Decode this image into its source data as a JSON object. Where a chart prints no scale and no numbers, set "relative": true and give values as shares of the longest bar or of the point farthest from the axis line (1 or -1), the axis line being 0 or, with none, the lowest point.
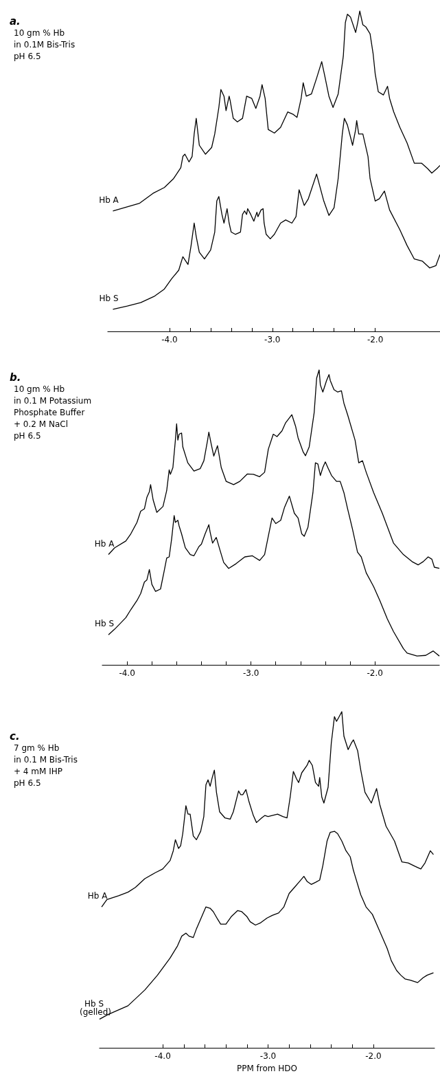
{
  "chart_data": [
    {
      "type": "line",
      "annotations": [
        "a."
      ],
      "subtitle": "10 gm % Hb\nin 0.1M Bis-Tris\npH 6.5",
      "relative": true,
      "xlim": [
        -4.6,
        -1.37
      ],
      "xticks": [
        {
          "value": -4,
          "label": "-4.0"
        },
        {
          "value": -3.8,
          "label": null
        },
        {
          "value": -3.6,
          "label": null
        },
        {
          "value": -3.4,
          "label": null
        },
        {
          "value": -3.2,
          "label": null
        },
        {
          "value": -3,
          "label": "-3.0"
        },
        {
          "value": -2.8,
          "label": null
        },
        {
          "value": -2.6,
          "label": null
        },
        {
          "value": -2.4,
          "label": null
        },
        {
          "value": -2.2,
          "label": null
        },
        {
          "value": -2,
          "label": "-2.0"
        }
      ],
      "series": [
        {
          "name": "Hb A",
          "color": "#000000",
          "x": [
            -4.55,
            -4.4,
            -4.29,
            -4.16,
            -4.05,
            -3.96,
            -3.89,
            -3.87,
            -3.85,
            -3.81,
            -3.78,
            -3.76,
            -3.74,
            -3.71,
            -3.65,
            -3.59,
            -3.56,
            -3.52,
            -3.5,
            -3.47,
            -3.45,
            -3.42,
            -3.41,
            -3.38,
            -3.34,
            -3.29,
            -3.25,
            -3.2,
            -3.16,
            -3.12,
            -3.1,
            -3.07,
            -3.04,
            -2.98,
            -2.92,
            -2.85,
            -2.8,
            -2.76,
            -2.72,
            -2.7,
            -2.67,
            -2.62,
            -2.57,
            -2.52,
            -2.49,
            -2.45,
            -2.41,
            -2.36,
            -2.31,
            -2.29,
            -2.27,
            -2.24,
            -2.19,
            -2.17,
            -2.15,
            -2.12,
            -2.09,
            -2.05,
            -2.02,
            -2.0,
            -1.97,
            -1.92,
            -1.88,
            -1.86,
            -1.82,
            -1.76,
            -1.69,
            -1.62,
            -1.55,
            -1.49,
            -1.45,
            -1.4,
            -1.37
          ],
          "values": [
            0.376,
            0.39,
            0.4,
            0.431,
            0.449,
            0.477,
            0.511,
            0.546,
            0.553,
            0.529,
            0.546,
            0.616,
            0.665,
            0.581,
            0.553,
            0.574,
            0.616,
            0.699,
            0.755,
            0.734,
            0.689,
            0.734,
            0.72,
            0.665,
            0.654,
            0.665,
            0.734,
            0.727,
            0.696,
            0.734,
            0.77,
            0.727,
            0.63,
            0.619,
            0.637,
            0.685,
            0.678,
            0.668,
            0.727,
            0.776,
            0.734,
            0.741,
            0.79,
            0.842,
            0.797,
            0.734,
            0.699,
            0.741,
            0.859,
            0.964,
            0.99,
            0.981,
            0.933,
            0.964,
            1.0,
            0.957,
            0.95,
            0.929,
            0.866,
            0.804,
            0.748,
            0.738,
            0.765,
            0.727,
            0.685,
            0.637,
            0.588,
            0.525,
            0.525,
            0.508,
            0.494,
            0.508,
            0.518
          ]
        },
        {
          "name": "Hb S",
          "color": "#000000",
          "x": [
            -4.55,
            -4.41,
            -4.28,
            -4.15,
            -4.05,
            -3.98,
            -3.91,
            -3.87,
            -3.82,
            -3.79,
            -3.76,
            -3.74,
            -3.71,
            -3.66,
            -3.6,
            -3.56,
            -3.54,
            -3.52,
            -3.49,
            -3.47,
            -3.44,
            -3.42,
            -3.4,
            -3.36,
            -3.31,
            -3.29,
            -3.27,
            -3.25,
            -3.24,
            -3.21,
            -3.18,
            -3.15,
            -3.14,
            -3.11,
            -3.09,
            -3.08,
            -3.06,
            -3.02,
            -2.98,
            -2.92,
            -2.87,
            -2.81,
            -2.77,
            -2.74,
            -2.69,
            -2.65,
            -2.57,
            -2.5,
            -2.45,
            -2.4,
            -2.36,
            -2.32,
            -2.3,
            -2.27,
            -2.22,
            -2.19,
            -2.18,
            -2.16,
            -2.12,
            -2.07,
            -2.05,
            -2.0,
            -1.96,
            -1.91,
            -1.86,
            -1.76,
            -1.69,
            -1.62,
            -1.54,
            -1.47,
            -1.41,
            -1.37
          ],
          "values": [
            0.069,
            0.079,
            0.09,
            0.109,
            0.132,
            0.164,
            0.191,
            0.233,
            0.209,
            0.268,
            0.338,
            0.296,
            0.247,
            0.226,
            0.254,
            0.31,
            0.407,
            0.421,
            0.365,
            0.338,
            0.383,
            0.338,
            0.31,
            0.303,
            0.31,
            0.365,
            0.376,
            0.365,
            0.383,
            0.365,
            0.344,
            0.372,
            0.358,
            0.379,
            0.383,
            0.338,
            0.303,
            0.289,
            0.303,
            0.338,
            0.348,
            0.338,
            0.358,
            0.442,
            0.393,
            0.414,
            0.491,
            0.407,
            0.362,
            0.386,
            0.477,
            0.616,
            0.665,
            0.644,
            0.581,
            0.63,
            0.658,
            0.616,
            0.616,
            0.546,
            0.477,
            0.407,
            0.414,
            0.438,
            0.379,
            0.317,
            0.268,
            0.226,
            0.219,
            0.198,
            0.205,
            0.24
          ]
        }
      ]
    },
    {
      "type": "line",
      "annotations": [
        "b."
      ],
      "subtitle": "10 gm % Hb\nin 0.1 M Potassium\nPhosphate Buffer\n+ 0.2 M NaCl\npH 6.5",
      "relative": true,
      "xlim": [
        -4.2,
        -1.48
      ],
      "xticks": [
        {
          "value": -4,
          "label": "-4.0"
        },
        {
          "value": -3.8,
          "label": null
        },
        {
          "value": -3.6,
          "label": null
        },
        {
          "value": -3.4,
          "label": null
        },
        {
          "value": -3.2,
          "label": null
        },
        {
          "value": -3,
          "label": "-3.0"
        },
        {
          "value": -2.8,
          "label": null
        },
        {
          "value": -2.6,
          "label": null
        },
        {
          "value": -2.4,
          "label": null
        },
        {
          "value": -2.2,
          "label": null
        },
        {
          "value": -2,
          "label": "-2.0"
        }
      ],
      "series": [
        {
          "name": "Hb A",
          "color": "#000000",
          "x": [
            -4.15,
            -4.1,
            -4.01,
            -3.97,
            -3.92,
            -3.89,
            -3.86,
            -3.84,
            -3.82,
            -3.81,
            -3.79,
            -3.76,
            -3.71,
            -3.68,
            -3.66,
            -3.65,
            -3.63,
            -3.61,
            -3.6,
            -3.59,
            -3.58,
            -3.56,
            -3.55,
            -3.51,
            -3.46,
            -3.41,
            -3.38,
            -3.35,
            -3.34,
            -3.32,
            -3.3,
            -3.27,
            -3.24,
            -3.2,
            -3.14,
            -3.09,
            -3.03,
            -2.98,
            -2.93,
            -2.89,
            -2.86,
            -2.82,
            -2.79,
            -2.75,
            -2.72,
            -2.67,
            -2.64,
            -2.62,
            -2.58,
            -2.56,
            -2.53,
            -2.49,
            -2.47,
            -2.45,
            -2.44,
            -2.42,
            -2.39,
            -2.37,
            -2.36,
            -2.33,
            -2.3,
            -2.27,
            -2.25,
            -2.22,
            -2.16,
            -2.13,
            -2.1,
            -2.07,
            -2.01,
            -1.94,
            -1.85,
            -1.77,
            -1.7,
            -1.65,
            -1.61,
            -1.57,
            -1.54,
            -1.52,
            -1.48
          ],
          "values": [
            0.374,
            0.397,
            0.42,
            0.444,
            0.483,
            0.521,
            0.529,
            0.568,
            0.587,
            0.611,
            0.56,
            0.517,
            0.537,
            0.591,
            0.661,
            0.646,
            0.669,
            0.762,
            0.817,
            0.762,
            0.782,
            0.786,
            0.739,
            0.685,
            0.657,
            0.665,
            0.692,
            0.762,
            0.789,
            0.747,
            0.708,
            0.743,
            0.669,
            0.622,
            0.611,
            0.622,
            0.647,
            0.646,
            0.638,
            0.653,
            0.731,
            0.782,
            0.774,
            0.793,
            0.821,
            0.848,
            0.809,
            0.77,
            0.723,
            0.709,
            0.739,
            0.855,
            0.972,
            1.0,
            0.949,
            0.925,
            0.964,
            0.984,
            0.964,
            0.933,
            0.925,
            0.929,
            0.887,
            0.848,
            0.762,
            0.685,
            0.692,
            0.653,
            0.584,
            0.514,
            0.413,
            0.374,
            0.35,
            0.339,
            0.35,
            0.366,
            0.358,
            0.331,
            0.327
          ]
        },
        {
          "name": "Hb S",
          "color": "#000000",
          "x": [
            -4.15,
            -4.1,
            -4.01,
            -3.97,
            -3.92,
            -3.89,
            -3.86,
            -3.84,
            -3.82,
            -3.8,
            -3.77,
            -3.73,
            -3.7,
            -3.68,
            -3.66,
            -3.64,
            -3.62,
            -3.61,
            -3.59,
            -3.58,
            -3.56,
            -3.53,
            -3.49,
            -3.46,
            -3.42,
            -3.4,
            -3.37,
            -3.34,
            -3.33,
            -3.31,
            -3.28,
            -3.25,
            -3.22,
            -3.18,
            -3.12,
            -3.05,
            -2.99,
            -2.96,
            -2.93,
            -2.89,
            -2.86,
            -2.83,
            -2.8,
            -2.76,
            -2.73,
            -2.69,
            -2.65,
            -2.62,
            -2.59,
            -2.57,
            -2.54,
            -2.5,
            -2.48,
            -2.46,
            -2.44,
            -2.42,
            -2.4,
            -2.38,
            -2.35,
            -2.31,
            -2.28,
            -2.25,
            -2.22,
            -2.18,
            -2.14,
            -2.11,
            -2.07,
            -2.01,
            -1.96,
            -1.9,
            -1.85,
            -1.77,
            -1.74,
            -1.66,
            -1.59,
            -1.53,
            -1.51,
            -1.48
          ],
          "values": [
            0.102,
            0.121,
            0.16,
            0.187,
            0.218,
            0.242,
            0.281,
            0.288,
            0.323,
            0.273,
            0.249,
            0.257,
            0.319,
            0.362,
            0.366,
            0.428,
            0.506,
            0.483,
            0.49,
            0.471,
            0.444,
            0.397,
            0.374,
            0.37,
            0.401,
            0.409,
            0.444,
            0.475,
            0.451,
            0.413,
            0.432,
            0.389,
            0.347,
            0.327,
            0.343,
            0.366,
            0.37,
            0.362,
            0.354,
            0.374,
            0.436,
            0.498,
            0.479,
            0.49,
            0.533,
            0.572,
            0.514,
            0.498,
            0.444,
            0.436,
            0.467,
            0.584,
            0.685,
            0.681,
            0.642,
            0.669,
            0.688,
            0.669,
            0.642,
            0.622,
            0.622,
            0.584,
            0.529,
            0.459,
            0.382,
            0.366,
            0.312,
            0.265,
            0.218,
            0.156,
            0.113,
            0.055,
            0.04,
            0.03,
            0.032,
            0.047,
            0.04,
            0.03
          ]
        }
      ]
    },
    {
      "type": "line",
      "annotations": [
        "c."
      ],
      "subtitle": "7 gm % Hb\nin 0.1 M Bis-Tris\n+ 4 mM IHP\npH 6.5",
      "xlabel": "PPM from HDO",
      "relative": true,
      "xlim": [
        -4.6,
        -1.42
      ],
      "xticks": [
        {
          "value": -4,
          "label": "-4.0"
        },
        {
          "value": -3.8,
          "label": null
        },
        {
          "value": -3.6,
          "label": null
        },
        {
          "value": -3.4,
          "label": null
        },
        {
          "value": -3.2,
          "label": null
        },
        {
          "value": -3,
          "label": "-3.0"
        },
        {
          "value": -2.8,
          "label": null
        },
        {
          "value": -2.6,
          "label": null
        },
        {
          "value": -2.4,
          "label": null
        },
        {
          "value": -2.2,
          "label": null
        },
        {
          "value": -2,
          "label": "-2.0"
        }
      ],
      "series": [
        {
          "name": "Hb A",
          "color": "#000000",
          "x": [
            -4.58,
            -4.53,
            -4.42,
            -4.33,
            -4.26,
            -4.17,
            -4.07,
            -4.0,
            -3.93,
            -3.9,
            -3.88,
            -3.85,
            -3.83,
            -3.81,
            -3.78,
            -3.76,
            -3.74,
            -3.71,
            -3.68,
            -3.64,
            -3.61,
            -3.59,
            -3.57,
            -3.55,
            -3.53,
            -3.51,
            -3.49,
            -3.46,
            -3.41,
            -3.36,
            -3.33,
            -3.28,
            -3.26,
            -3.24,
            -3.21,
            -3.18,
            -3.14,
            -3.11,
            -3.06,
            -3.03,
            -3.0,
            -2.91,
            -2.86,
            -2.82,
            -2.79,
            -2.76,
            -2.73,
            -2.71,
            -2.68,
            -2.63,
            -2.61,
            -2.58,
            -2.55,
            -2.52,
            -2.51,
            -2.49,
            -2.47,
            -2.43,
            -2.4,
            -2.37,
            -2.35,
            -2.33,
            -2.3,
            -2.28,
            -2.24,
            -2.21,
            -2.19,
            -2.15,
            -2.12,
            -2.08,
            -2.02,
            -1.97,
            -1.94,
            -1.88,
            -1.8,
            -1.73,
            -1.67,
            -1.6,
            -1.55,
            -1.51,
            -1.46,
            -1.43
          ],
          "values": [
            0.419,
            0.441,
            0.452,
            0.463,
            0.477,
            0.503,
            0.521,
            0.532,
            0.557,
            0.586,
            0.619,
            0.593,
            0.601,
            0.637,
            0.72,
            0.695,
            0.695,
            0.63,
            0.619,
            0.644,
            0.688,
            0.782,
            0.797,
            0.778,
            0.804,
            0.826,
            0.76,
            0.702,
            0.684,
            0.68,
            0.702,
            0.764,
            0.753,
            0.753,
            0.768,
            0.731,
            0.691,
            0.67,
            0.684,
            0.691,
            0.688,
            0.695,
            0.688,
            0.684,
            0.746,
            0.822,
            0.8,
            0.789,
            0.818,
            0.84,
            0.855,
            0.84,
            0.789,
            0.778,
            0.804,
            0.746,
            0.728,
            0.775,
            0.906,
            0.985,
            0.971,
            0.982,
            1.0,
            0.927,
            0.887,
            0.906,
            0.916,
            0.884,
            0.826,
            0.76,
            0.728,
            0.771,
            0.724,
            0.659,
            0.615,
            0.553,
            0.55,
            0.539,
            0.532,
            0.55,
            0.586,
            0.575
          ]
        },
        {
          "name": "Hb S (gelled)",
          "color": "#000000",
          "x": [
            -4.6,
            -4.52,
            -4.33,
            -4.17,
            -4.05,
            -3.93,
            -3.86,
            -3.82,
            -3.78,
            -3.75,
            -3.71,
            -3.68,
            -3.63,
            -3.59,
            -3.55,
            -3.52,
            -3.48,
            -3.45,
            -3.4,
            -3.35,
            -3.29,
            -3.25,
            -3.2,
            -3.17,
            -3.12,
            -3.07,
            -3.01,
            -2.96,
            -2.9,
            -2.85,
            -2.8,
            -2.75,
            -2.7,
            -2.66,
            -2.63,
            -2.59,
            -2.55,
            -2.51,
            -2.48,
            -2.44,
            -2.41,
            -2.37,
            -2.34,
            -2.3,
            -2.26,
            -2.22,
            -2.19,
            -2.12,
            -2.07,
            -2.01,
            -1.95,
            -1.87,
            -1.83,
            -1.78,
            -1.74,
            -1.7,
            -1.65,
            -1.58,
            -1.53,
            -1.49,
            -1.43
          ],
          "values": [
            0.085,
            0.099,
            0.125,
            0.172,
            0.216,
            0.267,
            0.303,
            0.332,
            0.341,
            0.332,
            0.328,
            0.354,
            0.39,
            0.419,
            0.415,
            0.405,
            0.383,
            0.368,
            0.368,
            0.39,
            0.408,
            0.405,
            0.39,
            0.375,
            0.365,
            0.372,
            0.386,
            0.394,
            0.401,
            0.419,
            0.459,
            0.477,
            0.495,
            0.51,
            0.495,
            0.486,
            0.492,
            0.499,
            0.542,
            0.615,
            0.641,
            0.644,
            0.637,
            0.615,
            0.586,
            0.568,
            0.528,
            0.455,
            0.419,
            0.397,
            0.354,
            0.296,
            0.259,
            0.23,
            0.216,
            0.205,
            0.201,
            0.194,
            0.208,
            0.216,
            0.223
          ]
        }
      ]
    }
  ]
}
